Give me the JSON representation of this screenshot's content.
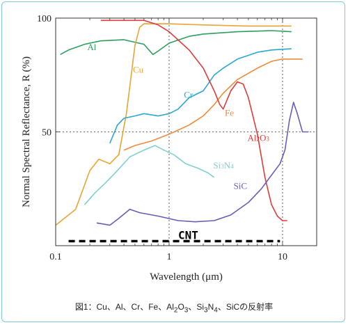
{
  "caption": {
    "prefix": "図1：Cu、Al、Cr、Fe、Al",
    "s1": "2",
    "t1": "O",
    "s2": "3",
    "t2": "、Si",
    "s3": "3",
    "t3": "N",
    "s4": "4",
    "t4": "、SiCの反射率"
  },
  "chart_data": {
    "type": "line",
    "xscale": "log",
    "xlim": [
      0.1,
      20
    ],
    "ylim": [
      0,
      100
    ],
    "xlabel": "Wavelength (μm)",
    "ylabel": "Normal Spectral Reflectance, R (%)",
    "xticks": [
      {
        "v": 0.1,
        "label": "0.1"
      },
      {
        "v": 1,
        "label": "1"
      },
      {
        "v": 10,
        "label": "10"
      }
    ],
    "yticks": [
      {
        "v": 50,
        "label": "50"
      },
      {
        "v": 100,
        "label": "100"
      }
    ],
    "grid": "dotted at x=1, x=10, y=50",
    "series": [
      {
        "name": "Al",
        "label_x": 0.19,
        "label_y": 86,
        "color": "#2e9e5e",
        "points": [
          [
            0.11,
            84
          ],
          [
            0.13,
            86
          ],
          [
            0.18,
            88.5
          ],
          [
            0.25,
            90
          ],
          [
            0.4,
            90.5
          ],
          [
            0.6,
            88.5
          ],
          [
            0.72,
            84
          ],
          [
            0.8,
            85.5
          ],
          [
            1.0,
            89
          ],
          [
            1.5,
            92
          ],
          [
            2,
            93
          ],
          [
            4,
            94
          ],
          [
            8,
            94.5
          ],
          [
            12,
            94
          ]
        ]
      },
      {
        "name": "Cu",
        "label_x": 0.48,
        "label_y": 76,
        "color": "#e8a531",
        "points": [
          [
            0.1,
            9
          ],
          [
            0.15,
            16
          ],
          [
            0.2,
            33
          ],
          [
            0.24,
            38
          ],
          [
            0.3,
            36
          ],
          [
            0.36,
            40
          ],
          [
            0.42,
            58
          ],
          [
            0.5,
            88
          ],
          [
            0.55,
            96
          ],
          [
            0.6,
            97.5
          ],
          [
            1,
            97.5
          ],
          [
            2,
            97
          ],
          [
            5,
            96.5
          ],
          [
            12,
            96.5
          ]
        ]
      },
      {
        "name": "Cr",
        "label_x": 1.35,
        "label_y": 65,
        "color": "#2aa7cf",
        "points": [
          [
            0.3,
            45
          ],
          [
            0.35,
            53
          ],
          [
            0.4,
            56
          ],
          [
            0.5,
            57
          ],
          [
            0.6,
            58
          ],
          [
            0.8,
            57
          ],
          [
            1.0,
            58
          ],
          [
            1.2,
            60
          ],
          [
            1.5,
            65
          ],
          [
            2,
            68
          ],
          [
            2.5,
            75
          ],
          [
            3,
            78
          ],
          [
            4,
            82
          ],
          [
            6,
            85
          ],
          [
            8,
            86
          ],
          [
            12,
            86.5
          ]
        ]
      },
      {
        "name": "Fe",
        "label_x": 3.1,
        "label_y": 57,
        "color": "#ef8a3b",
        "points": [
          [
            0.4,
            42
          ],
          [
            0.5,
            44
          ],
          [
            0.7,
            46
          ],
          [
            1.0,
            49
          ],
          [
            1.5,
            53
          ],
          [
            2,
            57
          ],
          [
            2.5,
            62
          ],
          [
            3,
            67
          ],
          [
            4,
            73
          ],
          [
            6,
            78
          ],
          [
            8,
            81
          ],
          [
            10,
            82
          ],
          [
            15,
            82
          ]
        ]
      },
      {
        "name": "Al2O3",
        "label_x": 4.9,
        "label_y": 46,
        "color": "#e03a3a",
        "points": [
          [
            0.25,
            99
          ],
          [
            0.4,
            99
          ],
          [
            0.6,
            99
          ],
          [
            0.8,
            97
          ],
          [
            1.0,
            94
          ],
          [
            1.5,
            86
          ],
          [
            2,
            78
          ],
          [
            2.5,
            68
          ],
          [
            2.8,
            62
          ],
          [
            3,
            60
          ],
          [
            3.5,
            68
          ],
          [
            4,
            72
          ],
          [
            4.5,
            71
          ],
          [
            5,
            65
          ],
          [
            6,
            49
          ],
          [
            7,
            30
          ],
          [
            8,
            18
          ],
          [
            9,
            13
          ],
          [
            10,
            11
          ],
          [
            11,
            11
          ]
        ]
      },
      {
        "name": "Si3N4",
        "label_x": 2.45,
        "label_y": 34,
        "color": "#7fcfcf",
        "points": [
          [
            0.18,
            18
          ],
          [
            0.22,
            23
          ],
          [
            0.28,
            28
          ],
          [
            0.35,
            33
          ],
          [
            0.45,
            39
          ],
          [
            0.6,
            42
          ],
          [
            0.75,
            44
          ],
          [
            0.9,
            42
          ],
          [
            1.1,
            40
          ],
          [
            1.4,
            36
          ],
          [
            1.8,
            34
          ],
          [
            2.2,
            32
          ],
          [
            2.5,
            30
          ]
        ]
      },
      {
        "name": "SiC",
        "label_x": 3.7,
        "label_y": 25,
        "color": "#6a5bb5",
        "points": [
          [
            0.23,
            10
          ],
          [
            0.3,
            9
          ],
          [
            0.36,
            12
          ],
          [
            0.45,
            16
          ],
          [
            0.55,
            14.5
          ],
          [
            0.8,
            13
          ],
          [
            1.2,
            11
          ],
          [
            1.7,
            10.5
          ],
          [
            2.5,
            11
          ],
          [
            3.5,
            13.5
          ],
          [
            5,
            19
          ],
          [
            6.5,
            25
          ],
          [
            8,
            31
          ],
          [
            9.5,
            36
          ],
          [
            10.5,
            42
          ],
          [
            11.5,
            55
          ],
          [
            12.5,
            63
          ],
          [
            13.5,
            58
          ],
          [
            15,
            50
          ],
          [
            17,
            50
          ]
        ]
      }
    ],
    "annotations": [
      {
        "text": "CNT",
        "x_from": 0.13,
        "x_to": 9.5,
        "y": 2,
        "style": "dashed"
      }
    ]
  }
}
